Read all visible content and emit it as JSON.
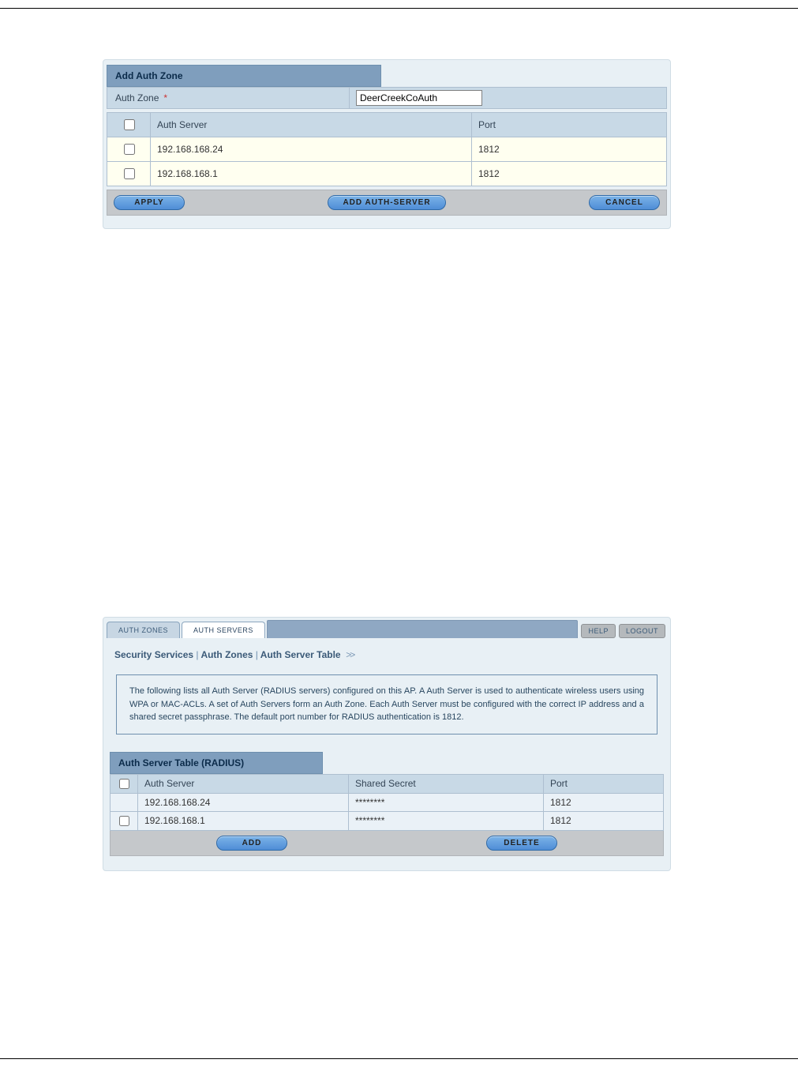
{
  "top_panel": {
    "title": "Add Auth Zone",
    "zone_label": "Auth Zone",
    "zone_required_mark": "*",
    "zone_value": "DeerCreekCoAuth",
    "columns": {
      "server": "Auth Server",
      "port": "Port"
    },
    "rows": [
      {
        "server": "192.168.168.24",
        "port": "1812"
      },
      {
        "server": "192.168.168.1",
        "port": "1812"
      }
    ],
    "buttons": {
      "apply": "APPLY",
      "add_server": "ADD AUTH-SERVER",
      "cancel": "CANCEL"
    }
  },
  "bottom_panel": {
    "tabs": {
      "zones": "AUTH ZONES",
      "servers": "AUTH SERVERS"
    },
    "actions": {
      "help": "HELP",
      "logout": "LOGOUT"
    },
    "breadcrumb": {
      "a": "Security Services",
      "b": "Auth Zones",
      "c": "Auth Server Table",
      "sep": "|",
      "arrows": ">>"
    },
    "info_text": "The following lists all Auth Server (RADIUS servers) configured on this AP. A Auth Server is used to authenticate wireless users using WPA or MAC-ACLs. A set of Auth Servers form an Auth Zone. Each Auth Server must be configured with the correct IP address and a shared secret passphrase. The default port number for RADIUS authentication is 1812.",
    "radius_title": "Auth Server Table (RADIUS)",
    "radius_columns": {
      "server": "Auth Server",
      "secret": "Shared Secret",
      "port": "Port"
    },
    "radius_rows": [
      {
        "has_checkbox": false,
        "server": "192.168.168.24",
        "secret": "********",
        "port": "1812"
      },
      {
        "has_checkbox": true,
        "server": "192.168.168.1",
        "secret": "********",
        "port": "1812"
      }
    ],
    "buttons": {
      "add": "ADD",
      "delete": "DELETE"
    }
  }
}
